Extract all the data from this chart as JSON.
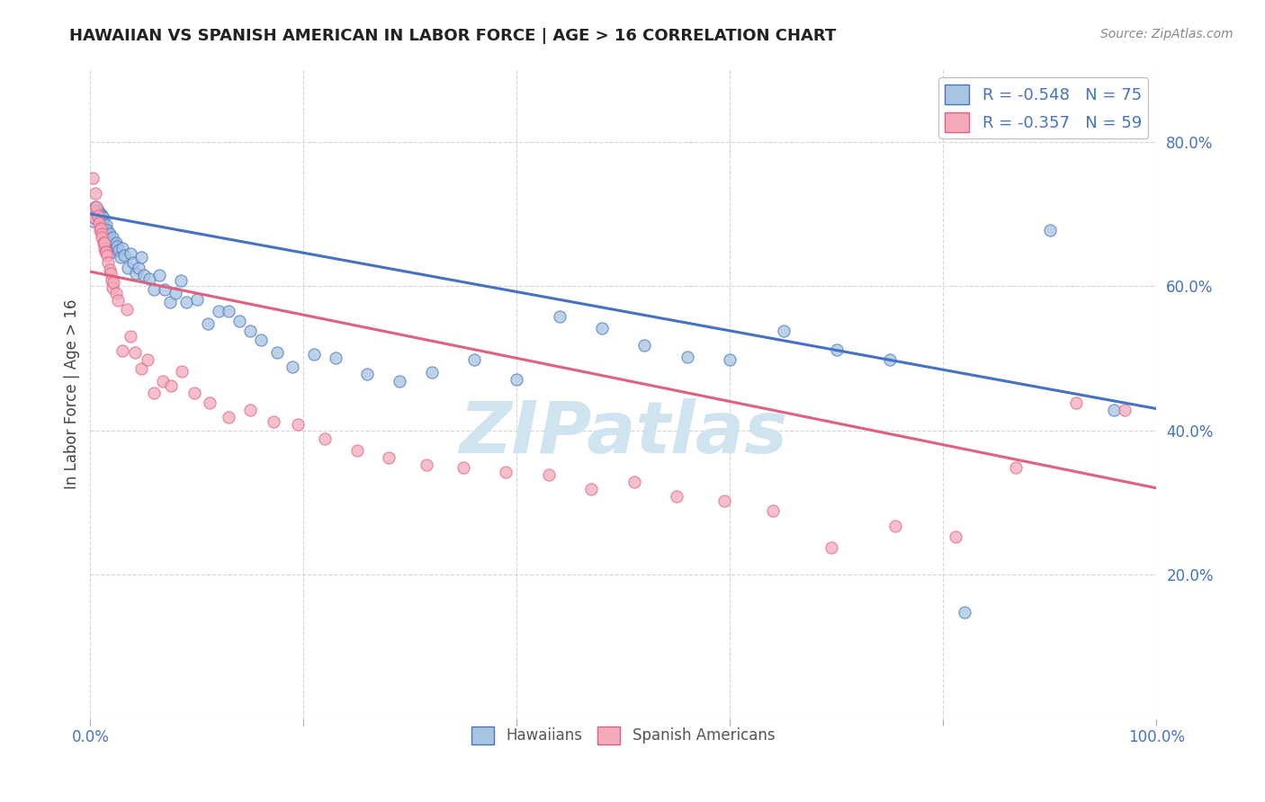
{
  "title": "HAWAIIAN VS SPANISH AMERICAN IN LABOR FORCE | AGE > 16 CORRELATION CHART",
  "source": "Source: ZipAtlas.com",
  "ylabel": "In Labor Force | Age > 16",
  "x_range": [
    0.0,
    1.0
  ],
  "y_range": [
    0.0,
    0.9
  ],
  "hawaiians_R": -0.548,
  "hawaiians_N": 75,
  "spanish_R": -0.357,
  "spanish_N": 59,
  "legend_label_hawaiians": "Hawaiians",
  "legend_label_spanish": "Spanish Americans",
  "color_hawaiians": "#A8C4E0",
  "color_spanish": "#F4AABB",
  "color_line_hawaiians": "#4472C4",
  "color_line_spanish": "#E06080",
  "watermark_color": "#D0E4F0",
  "hawaiians_x": [
    0.002,
    0.003,
    0.004,
    0.005,
    0.006,
    0.007,
    0.007,
    0.008,
    0.009,
    0.01,
    0.011,
    0.012,
    0.012,
    0.013,
    0.014,
    0.015,
    0.015,
    0.016,
    0.016,
    0.017,
    0.018,
    0.018,
    0.019,
    0.02,
    0.021,
    0.022,
    0.023,
    0.024,
    0.025,
    0.027,
    0.028,
    0.03,
    0.032,
    0.035,
    0.038,
    0.04,
    0.043,
    0.045,
    0.048,
    0.05,
    0.055,
    0.06,
    0.065,
    0.07,
    0.075,
    0.08,
    0.085,
    0.09,
    0.1,
    0.11,
    0.12,
    0.13,
    0.14,
    0.15,
    0.16,
    0.175,
    0.19,
    0.21,
    0.23,
    0.26,
    0.29,
    0.32,
    0.36,
    0.4,
    0.44,
    0.48,
    0.52,
    0.56,
    0.6,
    0.65,
    0.7,
    0.75,
    0.82,
    0.9,
    0.96
  ],
  "hawaiians_y": [
    0.69,
    0.7,
    0.695,
    0.71,
    0.7,
    0.695,
    0.705,
    0.698,
    0.7,
    0.7,
    0.698,
    0.695,
    0.685,
    0.68,
    0.678,
    0.685,
    0.675,
    0.665,
    0.678,
    0.67,
    0.672,
    0.665,
    0.66,
    0.65,
    0.668,
    0.648,
    0.658,
    0.66,
    0.655,
    0.65,
    0.64,
    0.652,
    0.642,
    0.625,
    0.645,
    0.632,
    0.618,
    0.625,
    0.64,
    0.615,
    0.61,
    0.595,
    0.615,
    0.595,
    0.578,
    0.59,
    0.608,
    0.578,
    0.582,
    0.548,
    0.565,
    0.565,
    0.552,
    0.538,
    0.525,
    0.508,
    0.488,
    0.505,
    0.5,
    0.478,
    0.468,
    0.48,
    0.498,
    0.47,
    0.558,
    0.542,
    0.518,
    0.502,
    0.498,
    0.538,
    0.512,
    0.498,
    0.148,
    0.678,
    0.428
  ],
  "spanish_x": [
    0.002,
    0.003,
    0.004,
    0.005,
    0.006,
    0.007,
    0.008,
    0.009,
    0.01,
    0.011,
    0.011,
    0.012,
    0.013,
    0.013,
    0.014,
    0.015,
    0.016,
    0.017,
    0.018,
    0.019,
    0.02,
    0.021,
    0.022,
    0.024,
    0.026,
    0.03,
    0.034,
    0.038,
    0.042,
    0.048,
    0.054,
    0.06,
    0.068,
    0.076,
    0.086,
    0.098,
    0.112,
    0.13,
    0.15,
    0.172,
    0.195,
    0.22,
    0.25,
    0.28,
    0.315,
    0.35,
    0.39,
    0.43,
    0.47,
    0.51,
    0.55,
    0.595,
    0.64,
    0.695,
    0.755,
    0.812,
    0.868,
    0.925,
    0.97
  ],
  "spanish_y": [
    0.75,
    0.705,
    0.695,
    0.728,
    0.71,
    0.698,
    0.688,
    0.678,
    0.68,
    0.672,
    0.668,
    0.66,
    0.652,
    0.66,
    0.648,
    0.648,
    0.642,
    0.632,
    0.622,
    0.618,
    0.608,
    0.598,
    0.605,
    0.59,
    0.58,
    0.51,
    0.568,
    0.53,
    0.508,
    0.485,
    0.498,
    0.452,
    0.468,
    0.462,
    0.482,
    0.452,
    0.438,
    0.418,
    0.428,
    0.412,
    0.408,
    0.388,
    0.372,
    0.362,
    0.352,
    0.348,
    0.342,
    0.338,
    0.318,
    0.328,
    0.308,
    0.302,
    0.288,
    0.238,
    0.268,
    0.252,
    0.348,
    0.438,
    0.428
  ],
  "trend_h_x0": 0.0,
  "trend_h_y0": 0.7,
  "trend_h_x1": 1.0,
  "trend_h_y1": 0.43,
  "trend_s_x0": 0.0,
  "trend_s_y0": 0.62,
  "trend_s_x1": 1.0,
  "trend_s_y1": 0.32
}
